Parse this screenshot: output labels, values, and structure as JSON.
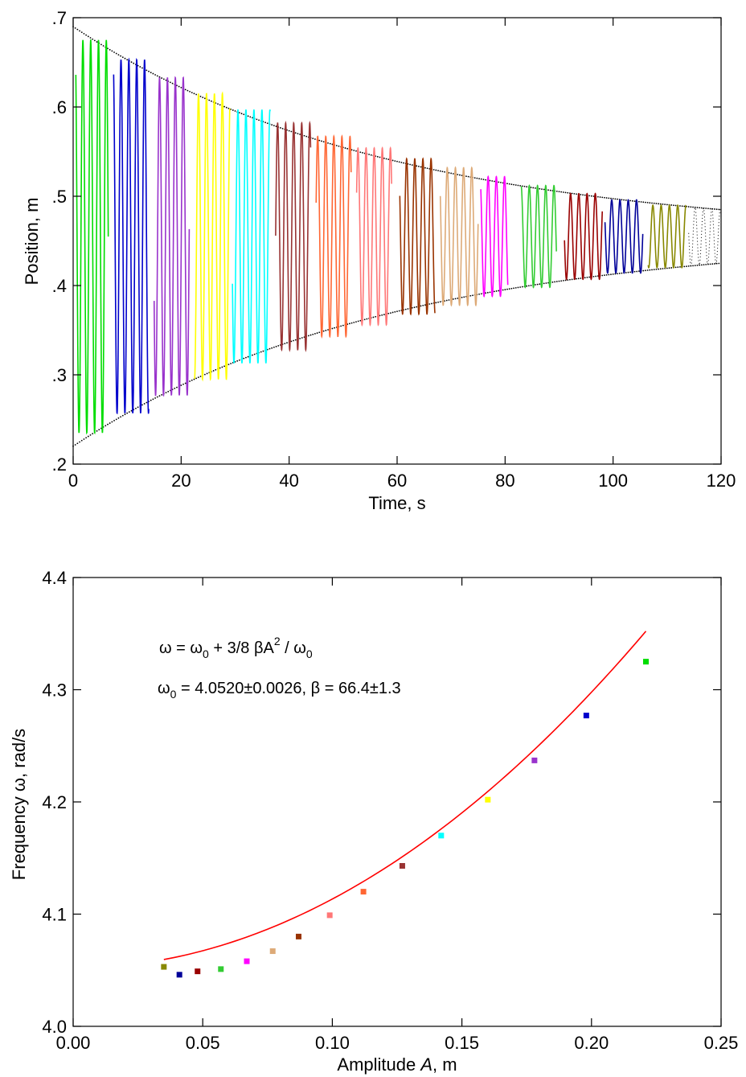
{
  "chart_data": [
    {
      "type": "line",
      "title": "",
      "xlabel": "Time, s",
      "ylabel": "Position, m",
      "xlim": [
        0,
        120
      ],
      "ylim": [
        0.2,
        0.7
      ],
      "xticks": [
        0,
        20,
        40,
        60,
        80,
        100,
        120
      ],
      "xtick_labels": [
        "0",
        "20",
        "40",
        "60",
        "80",
        "100",
        "120"
      ],
      "yticks": [
        0.2,
        0.3,
        0.4,
        0.5,
        0.6,
        0.7
      ],
      "ytick_labels": [
        ".2",
        ".3",
        ".4",
        ".5",
        ".6",
        ".7"
      ],
      "grid": false,
      "legend": "none",
      "equilibrium": 0.455,
      "envelope": {
        "initial_amplitude": 0.235,
        "final_amplitude": 0.03,
        "x_start": 0,
        "x_end": 120
      },
      "segments": [
        {
          "t0": 0.5,
          "t1": 6.5,
          "amplitude": 0.22,
          "color": "#00dd00"
        },
        {
          "t0": 7.5,
          "t1": 14.0,
          "amplitude": 0.198,
          "color": "#0000cc"
        },
        {
          "t0": 15.0,
          "t1": 21.5,
          "amplitude": 0.178,
          "color": "#9933cc"
        },
        {
          "t0": 22.5,
          "t1": 29.0,
          "amplitude": 0.16,
          "color": "#ffff00"
        },
        {
          "t0": 29.5,
          "t1": 36.5,
          "amplitude": 0.142,
          "color": "#00ffff"
        },
        {
          "t0": 37.5,
          "t1": 44.0,
          "amplitude": 0.127,
          "color": "#993333"
        },
        {
          "t0": 45.0,
          "t1": 51.5,
          "amplitude": 0.112,
          "color": "#ff6633"
        },
        {
          "t0": 52.5,
          "t1": 59.0,
          "amplitude": 0.099,
          "color": "#ff7777"
        },
        {
          "t0": 60.5,
          "t1": 67.0,
          "amplitude": 0.087,
          "color": "#993300"
        },
        {
          "t0": 68.0,
          "t1": 75.0,
          "amplitude": 0.077,
          "color": "#ddaa77"
        },
        {
          "t0": 75.5,
          "t1": 80.5,
          "amplitude": 0.067,
          "color": "#ff00ff"
        },
        {
          "t0": 83.0,
          "t1": 89.5,
          "amplitude": 0.057,
          "color": "#33cc33"
        },
        {
          "t0": 91.0,
          "t1": 98.0,
          "amplitude": 0.048,
          "color": "#990000"
        },
        {
          "t0": 98.5,
          "t1": 105.5,
          "amplitude": 0.041,
          "color": "#000099"
        },
        {
          "t0": 106.5,
          "t1": 113.5,
          "amplitude": 0.035,
          "color": "#888800"
        }
      ]
    },
    {
      "type": "scatter",
      "title": "",
      "xlabel": "Amplitude A, m",
      "ylabel": "Frequency ω, rad/s",
      "xlim": [
        0.0,
        0.25
      ],
      "ylim": [
        4.0,
        4.4
      ],
      "xticks": [
        0.0,
        0.05,
        0.1,
        0.15,
        0.2,
        0.25
      ],
      "xtick_labels": [
        "0.00",
        "0.05",
        "0.10",
        "0.15",
        "0.20",
        "0.25"
      ],
      "yticks": [
        4.0,
        4.1,
        4.2,
        4.3,
        4.4
      ],
      "ytick_labels": [
        "4.0",
        "4.1",
        "4.2",
        "4.3",
        "4.4"
      ],
      "grid": false,
      "legend": "none",
      "annotations": [
        "ω = ω0 + 3/8 βA2 / ω0",
        "ω0 = 4.0520±0.0026,  β = 66.4±1.3"
      ],
      "points": [
        {
          "x": 0.035,
          "y": 4.053,
          "color": "#888800"
        },
        {
          "x": 0.041,
          "y": 4.046,
          "color": "#000099"
        },
        {
          "x": 0.048,
          "y": 4.049,
          "color": "#990000"
        },
        {
          "x": 0.057,
          "y": 4.051,
          "color": "#33cc33"
        },
        {
          "x": 0.067,
          "y": 4.058,
          "color": "#ff00ff"
        },
        {
          "x": 0.077,
          "y": 4.067,
          "color": "#ddaa77"
        },
        {
          "x": 0.087,
          "y": 4.08,
          "color": "#993300"
        },
        {
          "x": 0.099,
          "y": 4.099,
          "color": "#ff7777"
        },
        {
          "x": 0.112,
          "y": 4.12,
          "color": "#ff6633"
        },
        {
          "x": 0.127,
          "y": 4.143,
          "color": "#993333"
        },
        {
          "x": 0.142,
          "y": 4.17,
          "color": "#00ffff"
        },
        {
          "x": 0.16,
          "y": 4.202,
          "color": "#ffff00"
        },
        {
          "x": 0.178,
          "y": 4.237,
          "color": "#9933cc"
        },
        {
          "x": 0.198,
          "y": 4.277,
          "color": "#0000cc"
        },
        {
          "x": 0.221,
          "y": 4.325,
          "color": "#00dd00"
        }
      ],
      "fit": {
        "omega0": 4.052,
        "beta": 66.4,
        "x_range": [
          0.035,
          0.221
        ],
        "color": "#ff0000"
      }
    }
  ]
}
